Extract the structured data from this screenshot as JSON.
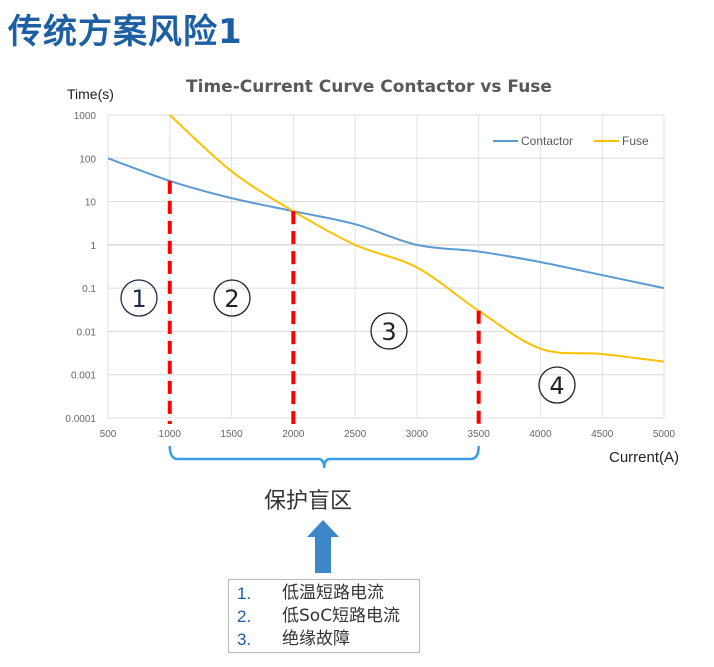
{
  "slide_title": "传统方案风险1",
  "zone_title": "保护盲区",
  "list": [
    {
      "num": "1.",
      "text": "低温短路电流"
    },
    {
      "num": "2.",
      "text": "低SoC短路电流"
    },
    {
      "num": "3.",
      "text": "绝缘故障"
    }
  ],
  "region_labels": [
    "1",
    "2",
    "3",
    "4"
  ],
  "colors": {
    "contactor": "#5b9bd5",
    "fuse": "#ffc000",
    "divider": "#ff0000",
    "brace": "#3a9ee8",
    "arrow": "#3d87c8",
    "title": "#1d5fa3"
  },
  "chart_data": {
    "type": "line",
    "title": "Time-Current Curve Contactor vs Fuse",
    "xlabel": "Current(A)",
    "ylabel": "Time(s)",
    "xlim": [
      500,
      5000
    ],
    "ylim": [
      0.0001,
      1000
    ],
    "yscale": "log",
    "grid": true,
    "legend": "top-right",
    "x_ticks": [
      "500",
      "1000",
      "1500",
      "2000",
      "2500",
      "3000",
      "3500",
      "4000",
      "4500",
      "5000"
    ],
    "y_ticks": [
      "1000",
      "100",
      "10",
      "1",
      "0.1",
      "0.01",
      "0.001",
      "0.0001"
    ],
    "series": [
      {
        "name": "Contactor",
        "x": [
          500,
          1000,
          1500,
          2000,
          2500,
          3000,
          3500,
          4000,
          4500,
          5000
        ],
        "y": [
          100,
          30,
          12,
          6,
          3,
          1,
          0.7,
          0.4,
          0.2,
          0.1
        ]
      },
      {
        "name": "Fuse",
        "x": [
          1000,
          1500,
          2000,
          2500,
          3000,
          3500,
          4000,
          4500,
          5000
        ],
        "y": [
          1000,
          50,
          6,
          1,
          0.3,
          0.03,
          0.004,
          0.003,
          0.002
        ]
      }
    ],
    "dividers": [
      {
        "x": 1000,
        "y_top": 30
      },
      {
        "x": 2000,
        "y_top": 6
      },
      {
        "x": 3500,
        "y_top": 0.03
      }
    ],
    "bracket": {
      "x_from": 1000,
      "x_to": 3500
    }
  }
}
